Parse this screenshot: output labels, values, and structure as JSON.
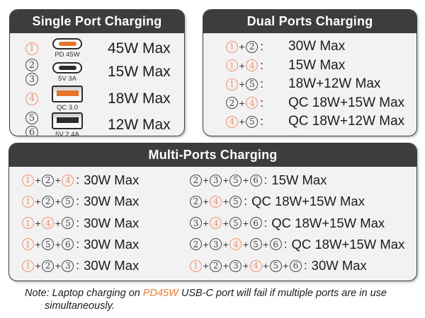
{
  "colors": {
    "header_bg": "#3d3d3f",
    "panel_bg": "#f2f2f2",
    "orange": "#e8732a",
    "orange_circle": "#f0946e",
    "dark_circle": "#47474a"
  },
  "port_colors": {
    "1": "orange",
    "2": "dark",
    "3": "dark",
    "4": "orange",
    "5": "dark",
    "6": "dark"
  },
  "single": {
    "title": "Single Port Charging",
    "rows": [
      {
        "ports": [
          1
        ],
        "icon": "usb-c",
        "icon_color": "orange",
        "icon_label": "PD 45W",
        "result": "45W Max"
      },
      {
        "ports": [
          2,
          3
        ],
        "icon": "usb-c",
        "icon_color": "black",
        "icon_label": "5V 3A",
        "result": "15W Max"
      },
      {
        "ports": [
          4
        ],
        "icon": "usb-a",
        "icon_color": "orange",
        "icon_label": "QC 3.0",
        "result": "18W Max"
      },
      {
        "ports": [
          5,
          6
        ],
        "icon": "usb-a",
        "icon_color": "black",
        "icon_label": "5V 2.4A",
        "result": "12W Max"
      }
    ]
  },
  "dual": {
    "title": "Dual Ports Charging",
    "rows": [
      {
        "ports": [
          1,
          2
        ],
        "result": "30W Max"
      },
      {
        "ports": [
          1,
          4
        ],
        "result": "15W Max"
      },
      {
        "ports": [
          1,
          5
        ],
        "result": "18W+12W Max"
      },
      {
        "ports": [
          2,
          4
        ],
        "result": "QC 18W+15W Max"
      },
      {
        "ports": [
          4,
          5
        ],
        "result": "QC 18W+12W Max"
      }
    ]
  },
  "multi": {
    "title": "Multi-Ports Charging",
    "left_rows": [
      {
        "ports": [
          1,
          2,
          4
        ],
        "result": "30W Max"
      },
      {
        "ports": [
          1,
          2,
          5
        ],
        "result": "30W Max"
      },
      {
        "ports": [
          1,
          4,
          5
        ],
        "result": "30W Max"
      },
      {
        "ports": [
          1,
          5,
          6
        ],
        "result": "30W Max"
      },
      {
        "ports": [
          1,
          2,
          3
        ],
        "result": "30W Max"
      }
    ],
    "right_rows": [
      {
        "ports": [
          2,
          3,
          5,
          6
        ],
        "result": "15W Max"
      },
      {
        "ports": [
          2,
          4,
          5
        ],
        "result": "QC 18W+15W Max"
      },
      {
        "ports": [
          3,
          4,
          5,
          6
        ],
        "result": "QC 18W+15W Max"
      },
      {
        "ports": [
          2,
          3,
          4,
          5,
          6
        ],
        "result": "QC 18W+15W Max"
      },
      {
        "ports": [
          1,
          2,
          3,
          4,
          5,
          6
        ],
        "result": "30W Max"
      }
    ]
  },
  "note": {
    "line1_prefix": "Note: Laptop charging on ",
    "highlight": "PD45W",
    "line1_suffix": " USB-C port will fail if multiple ports are in use",
    "line2": "simultaneously."
  }
}
